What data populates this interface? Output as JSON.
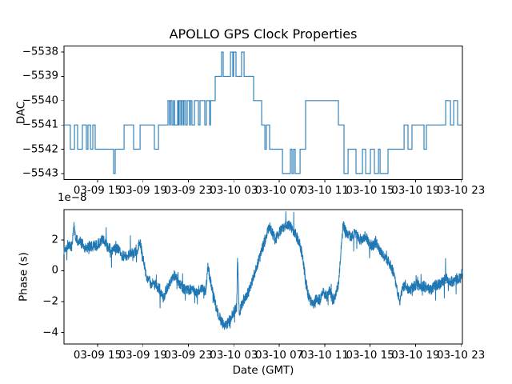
{
  "figure": {
    "title": "APOLLO GPS Clock Properties"
  },
  "chart_data": [
    {
      "type": "line",
      "subtype": "step",
      "title": "APOLLO GPS Clock Properties",
      "ylabel": "DAC",
      "line_color": "#1f77b4",
      "grid": false,
      "y_ticks": [
        -5538,
        -5539,
        -5540,
        -5541,
        -5542,
        -5543
      ],
      "y_tick_labels": [
        "−5538",
        "−5539",
        "−5540",
        "−5541",
        "−5542",
        "−5543"
      ],
      "ylim": [
        -5543.25,
        -5537.75
      ],
      "x_tick_hours": [
        15,
        19,
        23,
        27,
        31,
        35,
        39,
        43,
        47
      ],
      "x_tick_labels": [
        "03-09 15",
        "03-09 19",
        "03-09 23",
        "03-10 03",
        "03-10 07",
        "03-10 11",
        "03-10 15",
        "03-10 19",
        "03-10 23"
      ],
      "xlim_hours": [
        12.04,
        47.13
      ],
      "series": [
        {
          "name": "DAC",
          "end_hour": 47.13,
          "step_points": [
            [
              12.04,
              -5541
            ],
            [
              12.6,
              -5542
            ],
            [
              12.96,
              -5541
            ],
            [
              13.24,
              -5542
            ],
            [
              13.66,
              -5541
            ],
            [
              14.01,
              -5542
            ],
            [
              14.15,
              -5541
            ],
            [
              14.37,
              -5542
            ],
            [
              14.58,
              -5541
            ],
            [
              14.79,
              -5542
            ],
            [
              16.41,
              -5543
            ],
            [
              16.55,
              -5542
            ],
            [
              17.33,
              -5541
            ],
            [
              18.17,
              -5542
            ],
            [
              18.74,
              -5541
            ],
            [
              20.0,
              -5542
            ],
            [
              20.36,
              -5541
            ],
            [
              21.2,
              -5540
            ],
            [
              21.34,
              -5541
            ],
            [
              21.41,
              -5540
            ],
            [
              21.55,
              -5541
            ],
            [
              21.69,
              -5540
            ],
            [
              21.77,
              -5541
            ],
            [
              22.05,
              -5540
            ],
            [
              22.12,
              -5541
            ],
            [
              22.19,
              -5540
            ],
            [
              22.33,
              -5541
            ],
            [
              22.4,
              -5540
            ],
            [
              22.54,
              -5541
            ],
            [
              22.61,
              -5540
            ],
            [
              22.75,
              -5541
            ],
            [
              22.89,
              -5540
            ],
            [
              23.1,
              -5541
            ],
            [
              23.17,
              -5540
            ],
            [
              23.31,
              -5541
            ],
            [
              23.53,
              -5540
            ],
            [
              23.88,
              -5541
            ],
            [
              24.02,
              -5540
            ],
            [
              24.44,
              -5541
            ],
            [
              24.58,
              -5540
            ],
            [
              24.87,
              -5541
            ],
            [
              24.94,
              -5540
            ],
            [
              25.36,
              -5539
            ],
            [
              25.92,
              -5538
            ],
            [
              26.06,
              -5539
            ],
            [
              26.7,
              -5538
            ],
            [
              26.91,
              -5539
            ],
            [
              26.98,
              -5538
            ],
            [
              27.19,
              -5539
            ],
            [
              27.68,
              -5538
            ],
            [
              27.9,
              -5539
            ],
            [
              28.74,
              -5540
            ],
            [
              29.45,
              -5541
            ],
            [
              29.73,
              -5542
            ],
            [
              29.87,
              -5541
            ],
            [
              30.15,
              -5542
            ],
            [
              31.28,
              -5543
            ],
            [
              31.98,
              -5542
            ],
            [
              32.12,
              -5543
            ],
            [
              32.26,
              -5542
            ],
            [
              32.4,
              -5543
            ],
            [
              32.83,
              -5542
            ],
            [
              33.32,
              -5540
            ],
            [
              36.21,
              -5541
            ],
            [
              36.7,
              -5543
            ],
            [
              37.06,
              -5542
            ],
            [
              37.76,
              -5543
            ],
            [
              38.33,
              -5542
            ],
            [
              38.61,
              -5543
            ],
            [
              39.03,
              -5542
            ],
            [
              39.38,
              -5543
            ],
            [
              39.74,
              -5542
            ],
            [
              39.88,
              -5543
            ],
            [
              40.58,
              -5542
            ],
            [
              41.99,
              -5541
            ],
            [
              42.34,
              -5542
            ],
            [
              42.69,
              -5541
            ],
            [
              43.75,
              -5542
            ],
            [
              43.96,
              -5541
            ],
            [
              45.66,
              -5540
            ],
            [
              46.08,
              -5541
            ],
            [
              46.36,
              -5540
            ],
            [
              46.71,
              -5541
            ]
          ]
        }
      ]
    },
    {
      "type": "line",
      "ylabel": "Phase (s)",
      "xlabel": "Date (GMT)",
      "offset_text": "1e−8",
      "scale": 1e-08,
      "line_color": "#1f77b4",
      "grid": false,
      "y_ticks": [
        2,
        0,
        -2,
        -4
      ],
      "y_tick_labels": [
        "2",
        "0",
        "−2",
        "−4"
      ],
      "ylim": [
        -4.75,
        3.97
      ],
      "x_tick_hours": [
        15,
        19,
        23,
        27,
        31,
        35,
        39,
        43,
        47
      ],
      "x_tick_labels": [
        "03-09 15",
        "03-09 19",
        "03-09 23",
        "03-10 03",
        "03-10 07",
        "03-10 11",
        "03-10 15",
        "03-10 19",
        "03-10 23"
      ],
      "xlim_hours": [
        12.04,
        47.13
      ],
      "series": [
        {
          "name": "Phase",
          "units_note": "values in 1e-8 s",
          "noise_amplitude": 0.36,
          "n_points": 2600,
          "envelope_anchors": [
            [
              12.04,
              1.3
            ],
            [
              12.39,
              1.7
            ],
            [
              12.74,
              1.6
            ],
            [
              12.89,
              3.0
            ],
            [
              13.1,
              2.1
            ],
            [
              13.45,
              1.9
            ],
            [
              13.87,
              1.5
            ],
            [
              14.29,
              1.6
            ],
            [
              14.72,
              1.6
            ],
            [
              15.14,
              1.8
            ],
            [
              15.49,
              2.1
            ],
            [
              15.84,
              1.6
            ],
            [
              16.27,
              1.3
            ],
            [
              16.69,
              1.5
            ],
            [
              17.11,
              1.0
            ],
            [
              17.54,
              0.9
            ],
            [
              17.96,
              1.1
            ],
            [
              18.38,
              1.2
            ],
            [
              18.74,
              1.9
            ],
            [
              19.02,
              0.7
            ],
            [
              19.3,
              -0.3
            ],
            [
              19.65,
              -0.8
            ],
            [
              20.07,
              -0.9
            ],
            [
              20.5,
              -1.2
            ],
            [
              20.78,
              -1.8
            ],
            [
              21.06,
              -1.2
            ],
            [
              21.41,
              -0.7
            ],
            [
              21.69,
              -0.2
            ],
            [
              22.05,
              -0.6
            ],
            [
              22.47,
              -1.1
            ],
            [
              22.89,
              -1.3
            ],
            [
              23.31,
              -1.2
            ],
            [
              23.74,
              -1.4
            ],
            [
              24.16,
              -1.1
            ],
            [
              24.51,
              -1.3
            ],
            [
              24.72,
              0.3
            ],
            [
              25.01,
              -0.9
            ],
            [
              25.29,
              -1.9
            ],
            [
              25.57,
              -2.7
            ],
            [
              25.85,
              -3.2
            ],
            [
              26.21,
              -3.6
            ],
            [
              26.49,
              -3.4
            ],
            [
              26.77,
              -3.0
            ],
            [
              27.05,
              -2.6
            ],
            [
              27.26,
              -2.3
            ],
            [
              27.33,
              0.9
            ],
            [
              27.47,
              -2.7
            ],
            [
              27.75,
              -2.1
            ],
            [
              28.04,
              -1.6
            ],
            [
              28.32,
              -1.3
            ],
            [
              28.6,
              -0.7
            ],
            [
              28.88,
              0.0
            ],
            [
              29.16,
              0.6
            ],
            [
              29.45,
              1.3
            ],
            [
              29.73,
              2.0
            ],
            [
              30.08,
              2.9
            ],
            [
              30.36,
              2.5
            ],
            [
              30.64,
              2.0
            ],
            [
              30.93,
              2.4
            ],
            [
              31.21,
              2.7
            ],
            [
              31.63,
              3.1
            ],
            [
              31.91,
              2.9
            ],
            [
              32.19,
              2.7
            ],
            [
              32.47,
              2.3
            ],
            [
              32.68,
              2.0
            ],
            [
              32.9,
              1.5
            ],
            [
              33.11,
              0.6
            ],
            [
              33.32,
              -0.7
            ],
            [
              33.53,
              -1.5
            ],
            [
              33.74,
              -1.9
            ],
            [
              34.02,
              -2.1
            ],
            [
              34.31,
              -1.8
            ],
            [
              34.59,
              -1.9
            ],
            [
              34.87,
              -1.3
            ],
            [
              35.15,
              -1.7
            ],
            [
              35.43,
              -1.3
            ],
            [
              35.71,
              -1.9
            ],
            [
              35.99,
              -1.6
            ],
            [
              36.21,
              -0.8
            ],
            [
              36.35,
              0.5
            ],
            [
              36.49,
              1.9
            ],
            [
              36.63,
              3.0
            ],
            [
              36.91,
              2.4
            ],
            [
              37.27,
              2.2
            ],
            [
              37.62,
              2.4
            ],
            [
              37.97,
              2.2
            ],
            [
              38.33,
              1.9
            ],
            [
              38.61,
              2.3
            ],
            [
              38.89,
              1.8
            ],
            [
              39.24,
              1.6
            ],
            [
              39.52,
              1.9
            ],
            [
              39.88,
              1.3
            ],
            [
              40.23,
              1.0
            ],
            [
              40.58,
              0.6
            ],
            [
              40.86,
              0.3
            ],
            [
              41.15,
              -0.4
            ],
            [
              41.43,
              -1.4
            ],
            [
              41.64,
              -2.0
            ],
            [
              41.85,
              -1.1
            ],
            [
              42.13,
              -0.9
            ],
            [
              42.41,
              -1.4
            ],
            [
              42.69,
              -1.1
            ],
            [
              43.05,
              -0.9
            ],
            [
              43.4,
              -1.0
            ],
            [
              43.75,
              -1.0
            ],
            [
              44.1,
              -1.2
            ],
            [
              44.45,
              -1.2
            ],
            [
              44.81,
              -0.9
            ],
            [
              45.16,
              -0.9
            ],
            [
              45.44,
              -0.6
            ],
            [
              45.73,
              -0.5
            ],
            [
              46.01,
              -0.7
            ],
            [
              46.29,
              -0.7
            ],
            [
              46.57,
              -0.5
            ],
            [
              46.85,
              -0.5
            ],
            [
              47.13,
              -0.1
            ]
          ]
        }
      ]
    }
  ]
}
